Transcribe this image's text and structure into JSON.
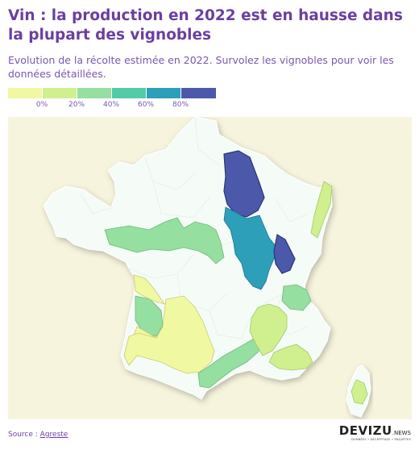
{
  "header": {
    "title": "Vin : la production en 2022 est en hausse dans la plupart des vignobles",
    "subtitle": "Evolution de la récolte estimée en 2022. Survolez les vignobles pour voir les données détaillées."
  },
  "legend": {
    "colors": [
      "#f1f8a2",
      "#d0ef8f",
      "#95dfa0",
      "#52cba7",
      "#2d9fb9",
      "#4c59ab"
    ],
    "ticks": [
      "0%",
      "20%",
      "40%",
      "60%",
      "80%"
    ]
  },
  "map": {
    "background": "#f7f4de",
    "land_color": "#f5fcf8",
    "border_color": "#ffffff",
    "regions": [
      {
        "id": "val-de-loire",
        "color": "#95dfa0",
        "level": "20% to 40%"
      },
      {
        "id": "charentes-cognac",
        "color": "#95dfa0",
        "level": "20% to 40%"
      },
      {
        "id": "bordeaux",
        "color": "#f1f8a2",
        "level": "below 0%"
      },
      {
        "id": "sud-ouest",
        "color": "#f1f8a2",
        "level": "below 0%"
      },
      {
        "id": "languedoc-roussillon",
        "color": "#95dfa0",
        "level": "20% to 40%"
      },
      {
        "id": "champagne",
        "color": "#4c59ab",
        "level": "above 80%"
      },
      {
        "id": "bourgogne",
        "color": "#2d9fb9",
        "level": "60% to 80%"
      },
      {
        "id": "jura",
        "color": "#4c59ab",
        "level": "above 80%"
      },
      {
        "id": "alsace",
        "color": "#d0ef8f",
        "level": "0% to 20%"
      },
      {
        "id": "savoie-bugey",
        "color": "#95dfa0",
        "level": "20% to 40%"
      },
      {
        "id": "vallee-du-rhone",
        "color": "#d0ef8f",
        "level": "0% to 20%"
      },
      {
        "id": "provence",
        "color": "#d0ef8f",
        "level": "0% to 20%"
      },
      {
        "id": "corse",
        "color": "#d0ef8f",
        "level": "0% to 20%"
      }
    ]
  },
  "footer": {
    "source_prefix": "Source : ",
    "source_link": "Agreste",
    "brand_name": "DEVIZU",
    "brand_suffix": ".NEWS",
    "brand_tagline": "DONNÉES • DÉCRYPTAGE • ENQUÊTES"
  }
}
